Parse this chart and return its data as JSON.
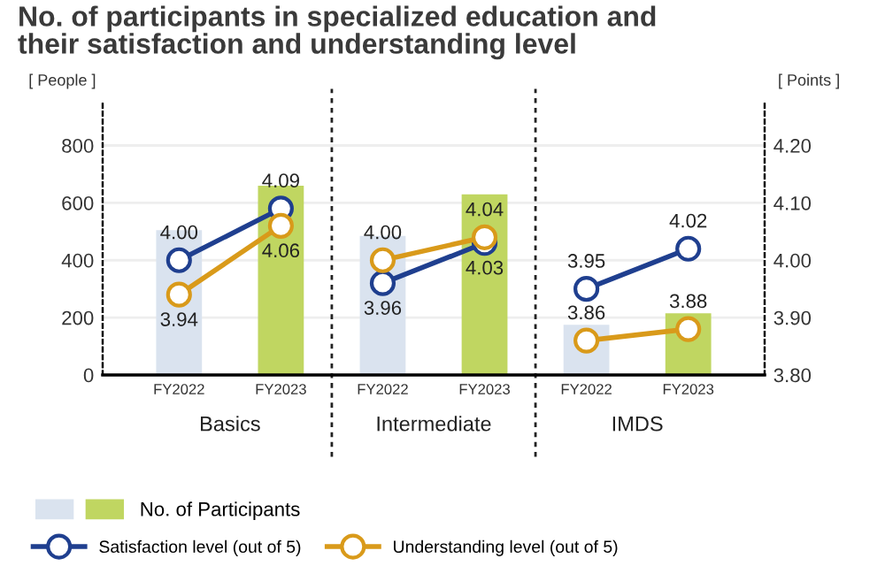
{
  "chart_data": {
    "type": "bar",
    "title": "No. of participants in specialized education and\ntheir satisfaction and understanding level",
    "categories": [
      "FY2022",
      "FY2023",
      "FY2022",
      "FY2023",
      "FY2022",
      "FY2023"
    ],
    "series": [
      {
        "name": "No. of Participants",
        "type": "bar",
        "colors": [
          "#dae3ef",
          "#c0d661",
          "#dae3ef",
          "#c0d661",
          "#dae3ef",
          "#c0d661"
        ],
        "values": [
          505,
          660,
          485,
          630,
          175,
          215
        ]
      },
      {
        "name": "Satisfaction level (out of 5)",
        "type": "line",
        "axis": "y2",
        "color": "#1f3f8f",
        "values": [
          4.0,
          4.09,
          3.96,
          4.03,
          3.95,
          4.02
        ],
        "value_labels": [
          "4.00",
          "4.09",
          "3.96",
          "4.03",
          "3.95",
          "4.02"
        ]
      },
      {
        "name": "Understanding level (out of 5)",
        "type": "line",
        "axis": "y2",
        "color": "#d99a1a",
        "values": [
          3.94,
          4.06,
          4.0,
          4.04,
          3.86,
          3.88
        ],
        "value_labels": [
          "3.94",
          "4.06",
          "4.00",
          "4.04",
          "3.86",
          "3.88"
        ]
      }
    ],
    "annotations": [
      "Basics",
      "Intermediate",
      "IMDS"
    ],
    "ylabel": "[ People ]",
    "y2label": "[ Points ]",
    "ylim": [
      0,
      950
    ],
    "yticks": [
      0,
      200,
      400,
      600,
      800
    ],
    "y2lim": [
      3.8,
      4.275
    ],
    "y2ticks": [
      {
        "value": 3.8,
        "label": "3.80"
      },
      {
        "value": 3.9,
        "label": "3.90"
      },
      {
        "value": 4.0,
        "label": "4.00"
      },
      {
        "value": 4.1,
        "label": "4.10"
      },
      {
        "value": 4.2,
        "label": "4.20"
      }
    ],
    "grid": "y",
    "legend": "bottom",
    "marker": "circle"
  }
}
